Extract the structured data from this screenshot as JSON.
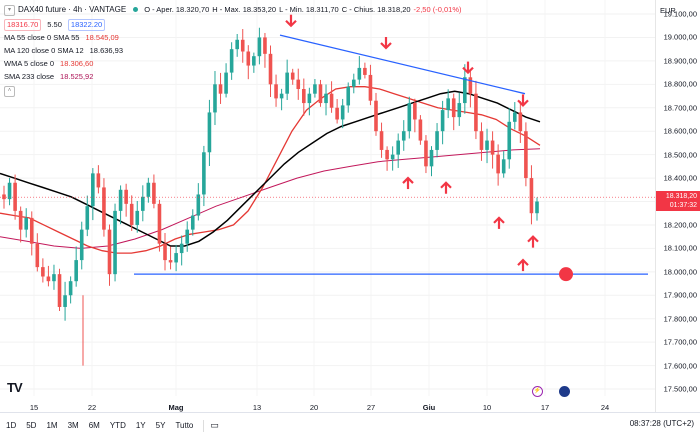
{
  "header": {
    "symbol_title": "DAX40 future · 4h · VANTAGE",
    "ohlc": {
      "open_label": "O",
      "open": "- Aper. 18.320,70",
      "high_label": "H",
      "high": "- Max. 18.353,20",
      "low_label": "L",
      "low": "- Min. 18.311,70",
      "close_label": "C",
      "close": "- Chius. 18.318,20",
      "change": "-2,50 (-0,01%)"
    },
    "bid": "18316.70",
    "spread": "5.50",
    "ask": "18322.20"
  },
  "indicators": [
    {
      "label": "MA 55 close 0 SMA 55",
      "value": "18.545,09",
      "color": "#e53935"
    },
    {
      "label": "MA 120 close 0 SMA 12",
      "value": "18.636,93",
      "color": "#131722"
    },
    {
      "label": "WMA 5 close 0",
      "value": "18.306,60",
      "color": "#e53935"
    },
    {
      "label": "SMA 233 close",
      "value": "18.525,92",
      "color": "#ad1457"
    }
  ],
  "currency": "EUR",
  "price_tag": {
    "price": "18.318,20",
    "countdown": "01:37:32"
  },
  "y_axis_labels": [
    "19.100,00",
    "19.000,00",
    "18.900,00",
    "18.800,00",
    "18.700,00",
    "18.600,00",
    "18.500,00",
    "18.400,00",
    "18.300,00",
    "18.200,00",
    "18.100,00",
    "18.000,00",
    "17.900,00",
    "17.800,00",
    "17.700,00",
    "17.600,00",
    "17.500,00"
  ],
  "x_axis_labels": [
    {
      "text": "15",
      "bold": false
    },
    {
      "text": "22",
      "bold": false
    },
    {
      "text": "Mag",
      "bold": true
    },
    {
      "text": "13",
      "bold": false
    },
    {
      "text": "20",
      "bold": false
    },
    {
      "text": "27",
      "bold": false
    },
    {
      "text": "Giu",
      "bold": true
    },
    {
      "text": "10",
      "bold": false
    },
    {
      "text": "17",
      "bold": false
    },
    {
      "text": "24",
      "bold": false
    }
  ],
  "timeframes": [
    "1D",
    "5D",
    "1M",
    "3M",
    "6M",
    "YTD",
    "1Y",
    "5Y",
    "Tutto"
  ],
  "clock": "08:37:28 (UTC+2)",
  "colors": {
    "up": "#26a69a",
    "down": "#ef5350",
    "trend": "#2962ff",
    "arrow": "#f23645",
    "ma55": "#e53935",
    "ma120": "#000000",
    "sma233": "#c2185b"
  },
  "chart_data": {
    "type": "candlestick",
    "title": "DAX40 future · 4h · VANTAGE",
    "ylim": [
      17500,
      19100
    ],
    "x_ticks": [
      "15",
      "22",
      "Mag",
      "13",
      "20",
      "27",
      "Giu",
      "10",
      "17",
      "24"
    ],
    "close_path": [
      18310,
      18380,
      18260,
      18180,
      18230,
      18120,
      18020,
      17980,
      17960,
      17990,
      17850,
      17900,
      17960,
      18050,
      18180,
      18280,
      18420,
      18360,
      18180,
      17990,
      18260,
      18350,
      18290,
      18200,
      18260,
      18320,
      18380,
      18290,
      18120,
      18050,
      18040,
      18080,
      18120,
      18180,
      18240,
      18330,
      18510,
      18680,
      18800,
      18760,
      18850,
      18950,
      18990,
      18940,
      18880,
      18920,
      19000,
      18930,
      18800,
      18740,
      18760,
      18850,
      18820,
      18780,
      18720,
      18760,
      18800,
      18720,
      18760,
      18700,
      18650,
      18710,
      18790,
      18820,
      18870,
      18840,
      18730,
      18600,
      18520,
      18480,
      18500,
      18560,
      18600,
      18720,
      18650,
      18560,
      18450,
      18520,
      18600,
      18690,
      18740,
      18660,
      18720,
      18830,
      18760,
      18600,
      18520,
      18560,
      18500,
      18420,
      18480,
      18640,
      18680,
      18600,
      18400,
      18250,
      18300
    ],
    "ma55": [
      18250,
      18240,
      18230,
      18200,
      18170,
      18140,
      18110,
      18090,
      18080,
      18080,
      18090,
      18110,
      18140,
      18160,
      18170,
      18180,
      18200,
      18260,
      18360,
      18480,
      18600,
      18690,
      18740,
      18780,
      18790,
      18790,
      18780,
      18760,
      18740,
      18720,
      18700,
      18690,
      18680,
      18670,
      18650,
      18610,
      18580,
      18540
    ],
    "ma120": [
      18420,
      18400,
      18380,
      18360,
      18340,
      18320,
      18290,
      18260,
      18230,
      18200,
      18170,
      18140,
      18110,
      18110,
      18130,
      18170,
      18220,
      18280,
      18340,
      18400,
      18460,
      18510,
      18550,
      18590,
      18620,
      18640,
      18660,
      18680,
      18700,
      18720,
      18740,
      18760,
      18770,
      18760,
      18740,
      18720,
      18690,
      18660,
      18640
    ],
    "sma233": [
      18150,
      18130,
      18110,
      18100,
      18110,
      18140,
      18180,
      18230,
      18280,
      18320,
      18360,
      18400,
      18430,
      18450,
      18470,
      18480,
      18490,
      18500,
      18510,
      18520,
      18525
    ],
    "trendline_upper": [
      {
        "x": "≈15 Mag",
        "y": 19010
      },
      {
        "x": "≈13 Giu",
        "y": 18760
      }
    ],
    "support_line": 17990,
    "last_price": 18318.2,
    "annotations": [
      {
        "type": "arrow-down",
        "count": 5
      },
      {
        "type": "arrow-up",
        "count": 5
      },
      {
        "type": "marker-dot",
        "y": 17990
      }
    ]
  }
}
